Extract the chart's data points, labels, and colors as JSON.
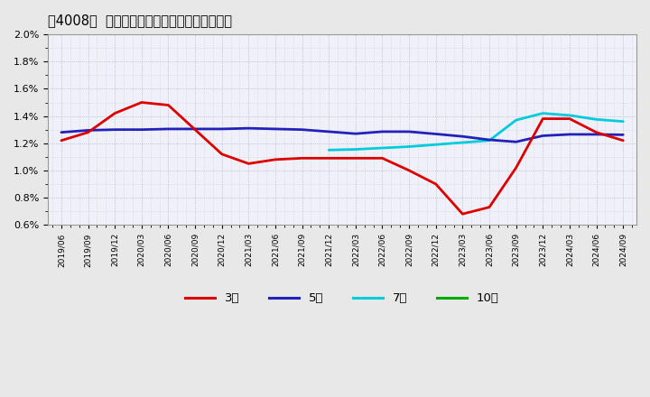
{
  "title": "［4008］  経常利益マージンの標準偏差の推移",
  "background_color": "#e8e8e8",
  "plot_bg_color": "#f0f0f8",
  "ylim": [
    0.006,
    0.02
  ],
  "yticks": [
    0.006,
    0.008,
    0.01,
    0.012,
    0.014,
    0.016,
    0.018,
    0.02
  ],
  "x_labels": [
    "2019/06",
    "2019/09",
    "2019/12",
    "2020/03",
    "2020/06",
    "2020/09",
    "2020/12",
    "2021/03",
    "2021/06",
    "2021/09",
    "2021/12",
    "2022/03",
    "2022/06",
    "2022/09",
    "2022/12",
    "2023/03",
    "2023/06",
    "2023/09",
    "2023/12",
    "2024/03",
    "2024/06",
    "2024/09"
  ],
  "series_3y_x": [
    0,
    1,
    2,
    3,
    4,
    5,
    6,
    7,
    8,
    9,
    10,
    11,
    12,
    13,
    14,
    15,
    16,
    17,
    18,
    19,
    20,
    21
  ],
  "series_3y_y": [
    0.0122,
    0.0128,
    0.0142,
    0.015,
    0.0148,
    0.013,
    0.0112,
    0.0105,
    0.0108,
    0.0109,
    0.0109,
    0.0109,
    0.0109,
    0.01,
    0.009,
    0.0068,
    0.0073,
    0.0102,
    0.0138,
    0.0138,
    0.0128,
    0.0122
  ],
  "series_5y_x": [
    0,
    1,
    2,
    3,
    4,
    5,
    6,
    7,
    8,
    9,
    10,
    11,
    12,
    13,
    14,
    15,
    16,
    17,
    18,
    19,
    20,
    21
  ],
  "series_5y_y": [
    0.0128,
    0.01295,
    0.013,
    0.013,
    0.01305,
    0.01305,
    0.01305,
    0.0131,
    0.01305,
    0.013,
    0.01285,
    0.0127,
    0.01285,
    0.01285,
    0.01268,
    0.0125,
    0.01225,
    0.0121,
    0.01255,
    0.01265,
    0.01265,
    0.01262
  ],
  "series_7y_x": [
    10,
    11,
    12,
    13,
    14,
    15,
    16,
    17,
    18,
    19,
    20,
    21
  ],
  "series_7y_y": [
    0.0115,
    0.01155,
    0.01165,
    0.01175,
    0.0119,
    0.01205,
    0.0122,
    0.0137,
    0.0142,
    0.01405,
    0.01375,
    0.0136
  ],
  "series_3y_color": "#dd0000",
  "series_5y_color": "#2222bb",
  "series_7y_color": "#00ccdd",
  "series_10y_color": "#00aa00",
  "legend_labels": [
    "3年",
    "5年",
    "7年",
    "10年"
  ],
  "grid_color": "#aaaacc",
  "linewidth": 2.0
}
